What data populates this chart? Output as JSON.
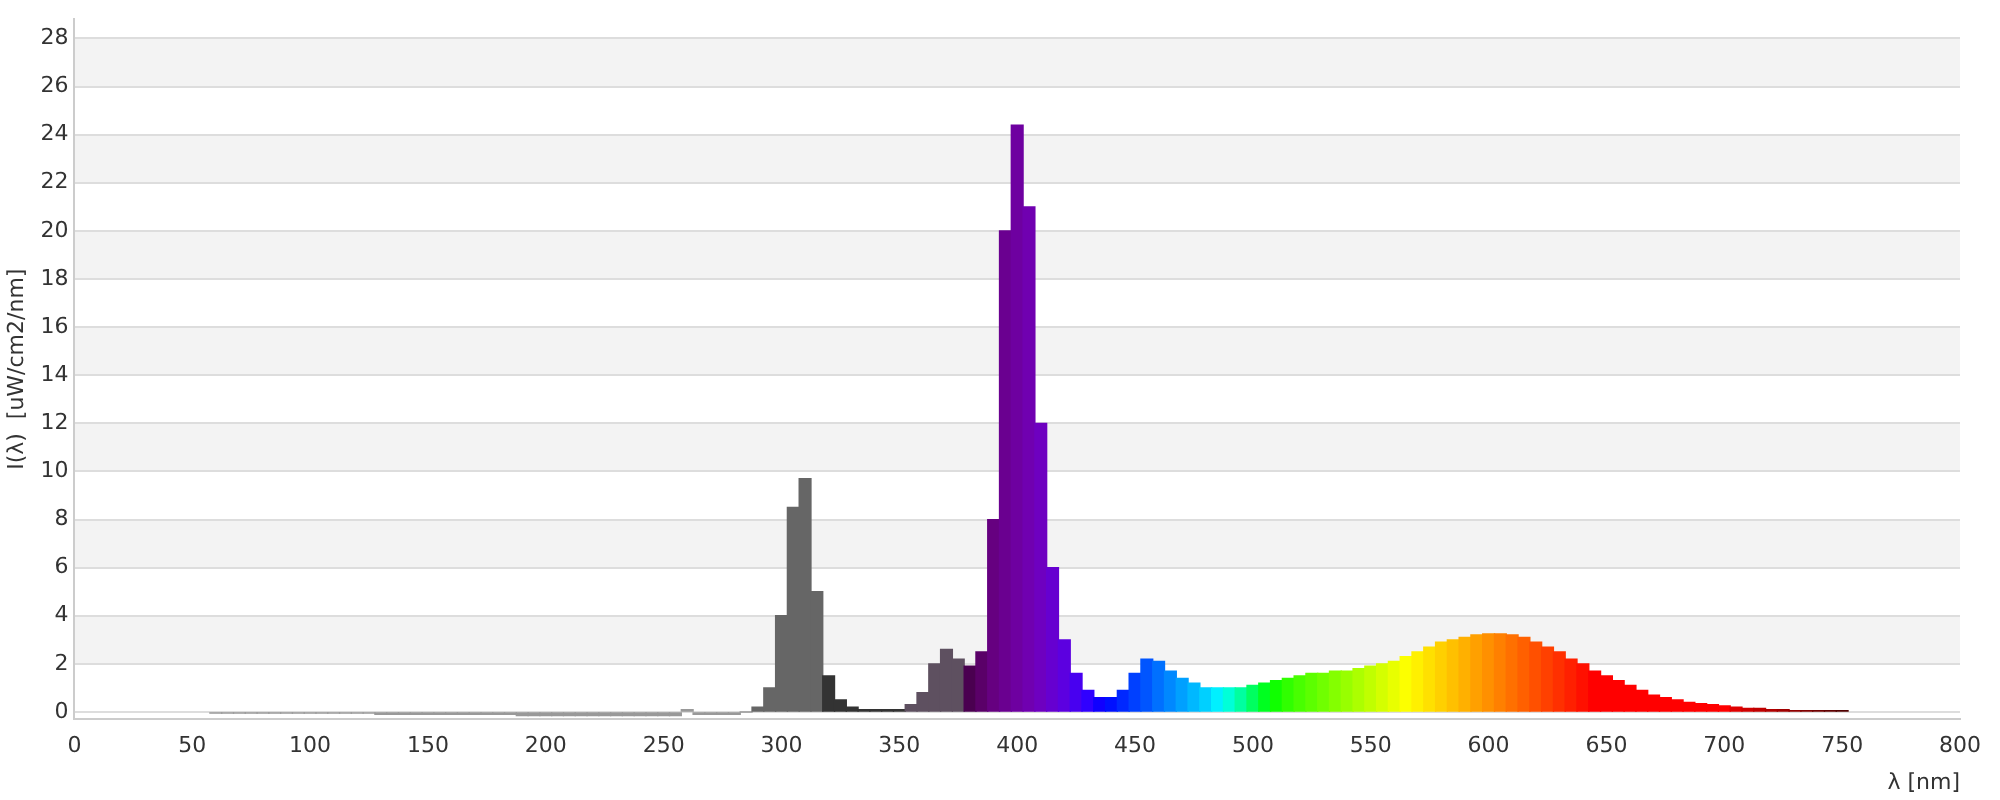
{
  "chart_data": {
    "type": "bar",
    "xlabel": "λ [nm]",
    "ylabel": "I(λ)  [uW/cm2/nm]",
    "x": [
      60,
      65,
      70,
      75,
      80,
      85,
      90,
      95,
      100,
      105,
      110,
      115,
      120,
      125,
      130,
      135,
      140,
      145,
      150,
      155,
      160,
      165,
      170,
      175,
      180,
      185,
      190,
      195,
      200,
      205,
      210,
      215,
      220,
      225,
      230,
      235,
      240,
      245,
      250,
      255,
      260,
      265,
      270,
      275,
      280,
      285,
      290,
      295,
      300,
      305,
      310,
      315,
      320,
      325,
      330,
      335,
      340,
      345,
      350,
      355,
      360,
      365,
      370,
      375,
      380,
      385,
      390,
      395,
      400,
      405,
      410,
      415,
      420,
      425,
      430,
      435,
      440,
      445,
      450,
      455,
      460,
      465,
      470,
      475,
      480,
      485,
      490,
      495,
      500,
      505,
      510,
      515,
      520,
      525,
      530,
      535,
      540,
      545,
      550,
      555,
      560,
      565,
      570,
      575,
      580,
      585,
      590,
      595,
      600,
      605,
      610,
      615,
      620,
      625,
      630,
      635,
      640,
      645,
      650,
      655,
      660,
      665,
      670,
      675,
      680,
      685,
      690,
      695,
      700,
      705,
      710,
      715,
      720,
      725,
      730,
      735,
      740,
      745,
      750
    ],
    "values": [
      -0.05,
      -0.05,
      -0.05,
      -0.05,
      -0.05,
      -0.05,
      -0.05,
      -0.05,
      -0.05,
      -0.05,
      -0.05,
      -0.05,
      -0.05,
      -0.05,
      -0.1,
      -0.1,
      -0.1,
      -0.1,
      -0.1,
      -0.1,
      -0.1,
      -0.1,
      -0.1,
      -0.1,
      -0.1,
      -0.1,
      -0.15,
      -0.15,
      -0.15,
      -0.15,
      -0.15,
      -0.15,
      -0.15,
      -0.15,
      -0.15,
      -0.15,
      -0.15,
      -0.15,
      -0.15,
      -0.15,
      0.1,
      -0.1,
      -0.1,
      -0.1,
      -0.1,
      0,
      0.2,
      1.0,
      4.0,
      8.5,
      9.7,
      5,
      1.5,
      0.5,
      0.2,
      0.1,
      0.1,
      0.1,
      0.1,
      0.3,
      0.8,
      2.0,
      2.6,
      2.2,
      1.9,
      2.5,
      8,
      20,
      24.4,
      21,
      12,
      6,
      3,
      1.6,
      0.9,
      0.6,
      0.6,
      0.9,
      1.6,
      2.2,
      2.1,
      1.7,
      1.4,
      1.2,
      1.0,
      1.0,
      1.0,
      1.0,
      1.1,
      1.2,
      1.3,
      1.4,
      1.5,
      1.6,
      1.6,
      1.7,
      1.7,
      1.8,
      1.9,
      2.0,
      2.1,
      2.3,
      2.5,
      2.7,
      2.9,
      3.0,
      3.1,
      3.2,
      3.25,
      3.25,
      3.2,
      3.1,
      2.9,
      2.7,
      2.5,
      2.2,
      2.0,
      1.7,
      1.5,
      1.3,
      1.1,
      0.9,
      0.7,
      0.6,
      0.5,
      0.4,
      0.35,
      0.3,
      0.25,
      0.2,
      0.15,
      0.15,
      0.1,
      0.1,
      0.05,
      0.05,
      0.05,
      0.05,
      0.05
    ],
    "colors": [
      "#999999",
      "#999999",
      "#999999",
      "#999999",
      "#999999",
      "#999999",
      "#999999",
      "#999999",
      "#999999",
      "#999999",
      "#999999",
      "#999999",
      "#999999",
      "#999999",
      "#999999",
      "#999999",
      "#999999",
      "#999999",
      "#999999",
      "#999999",
      "#999999",
      "#999999",
      "#999999",
      "#999999",
      "#999999",
      "#999999",
      "#999999",
      "#999999",
      "#999999",
      "#999999",
      "#999999",
      "#999999",
      "#999999",
      "#999999",
      "#999999",
      "#999999",
      "#999999",
      "#999999",
      "#999999",
      "#999999",
      "#999999",
      "#999999",
      "#999999",
      "#999999",
      "#999999",
      "#999999",
      "#666666",
      "#666666",
      "#666666",
      "#666666",
      "#666666",
      "#666666",
      "#333333",
      "#333333",
      "#333333",
      "#333333",
      "#333333",
      "#333333",
      "#333333",
      "#5e5060",
      "#5e5060",
      "#5e5060",
      "#5e5060",
      "#5e5060",
      "#4a0050",
      "#5a0068",
      "#660080",
      "#6a0090",
      "#6e00a0",
      "#7000b0",
      "#6e00c0",
      "#6600d0",
      "#5c00e0",
      "#4800f0",
      "#3000ff",
      "#1000ff",
      "#0010ff",
      "#0028ff",
      "#0040ff",
      "#0055ff",
      "#0070ff",
      "#0088ff",
      "#00a0ff",
      "#00b8ff",
      "#00d0ff",
      "#00f0ff",
      "#00ffd8",
      "#00ffa0",
      "#00ff60",
      "#00ff20",
      "#10ff00",
      "#30ff00",
      "#48ff00",
      "#5cff00",
      "#70ff00",
      "#84ff00",
      "#98ff00",
      "#acff00",
      "#c0ff00",
      "#d4ff00",
      "#e8ff00",
      "#fcff00",
      "#fff000",
      "#ffe000",
      "#ffd000",
      "#ffc000",
      "#ffb000",
      "#ffa000",
      "#ff9000",
      "#ff8000",
      "#ff7000",
      "#ff6000",
      "#ff5000",
      "#ff4000",
      "#ff3000",
      "#ff2000",
      "#ff1000",
      "#ff0000",
      "#ff0000",
      "#ff0000",
      "#ff0000",
      "#ff0000",
      "#ff0000",
      "#ff0000",
      "#ff0000",
      "#ff0000",
      "#ff0000",
      "#ff0000",
      "#ff0000",
      "#e00000",
      "#d00000",
      "#c00000",
      "#b00000",
      "#a00000",
      "#900000",
      "#800000",
      "#700000",
      "#600000",
      "#500000"
    ],
    "xlim": [
      0,
      800
    ],
    "xticks": [
      0,
      50,
      100,
      150,
      200,
      250,
      300,
      350,
      400,
      450,
      500,
      550,
      600,
      650,
      700,
      750,
      800
    ],
    "ylim": [
      -0.3,
      28.8
    ],
    "yticks": [
      0,
      2,
      4,
      6,
      8,
      10,
      12,
      14,
      16,
      18,
      20,
      22,
      24,
      26,
      28
    ],
    "grid": "y",
    "legend": false
  }
}
